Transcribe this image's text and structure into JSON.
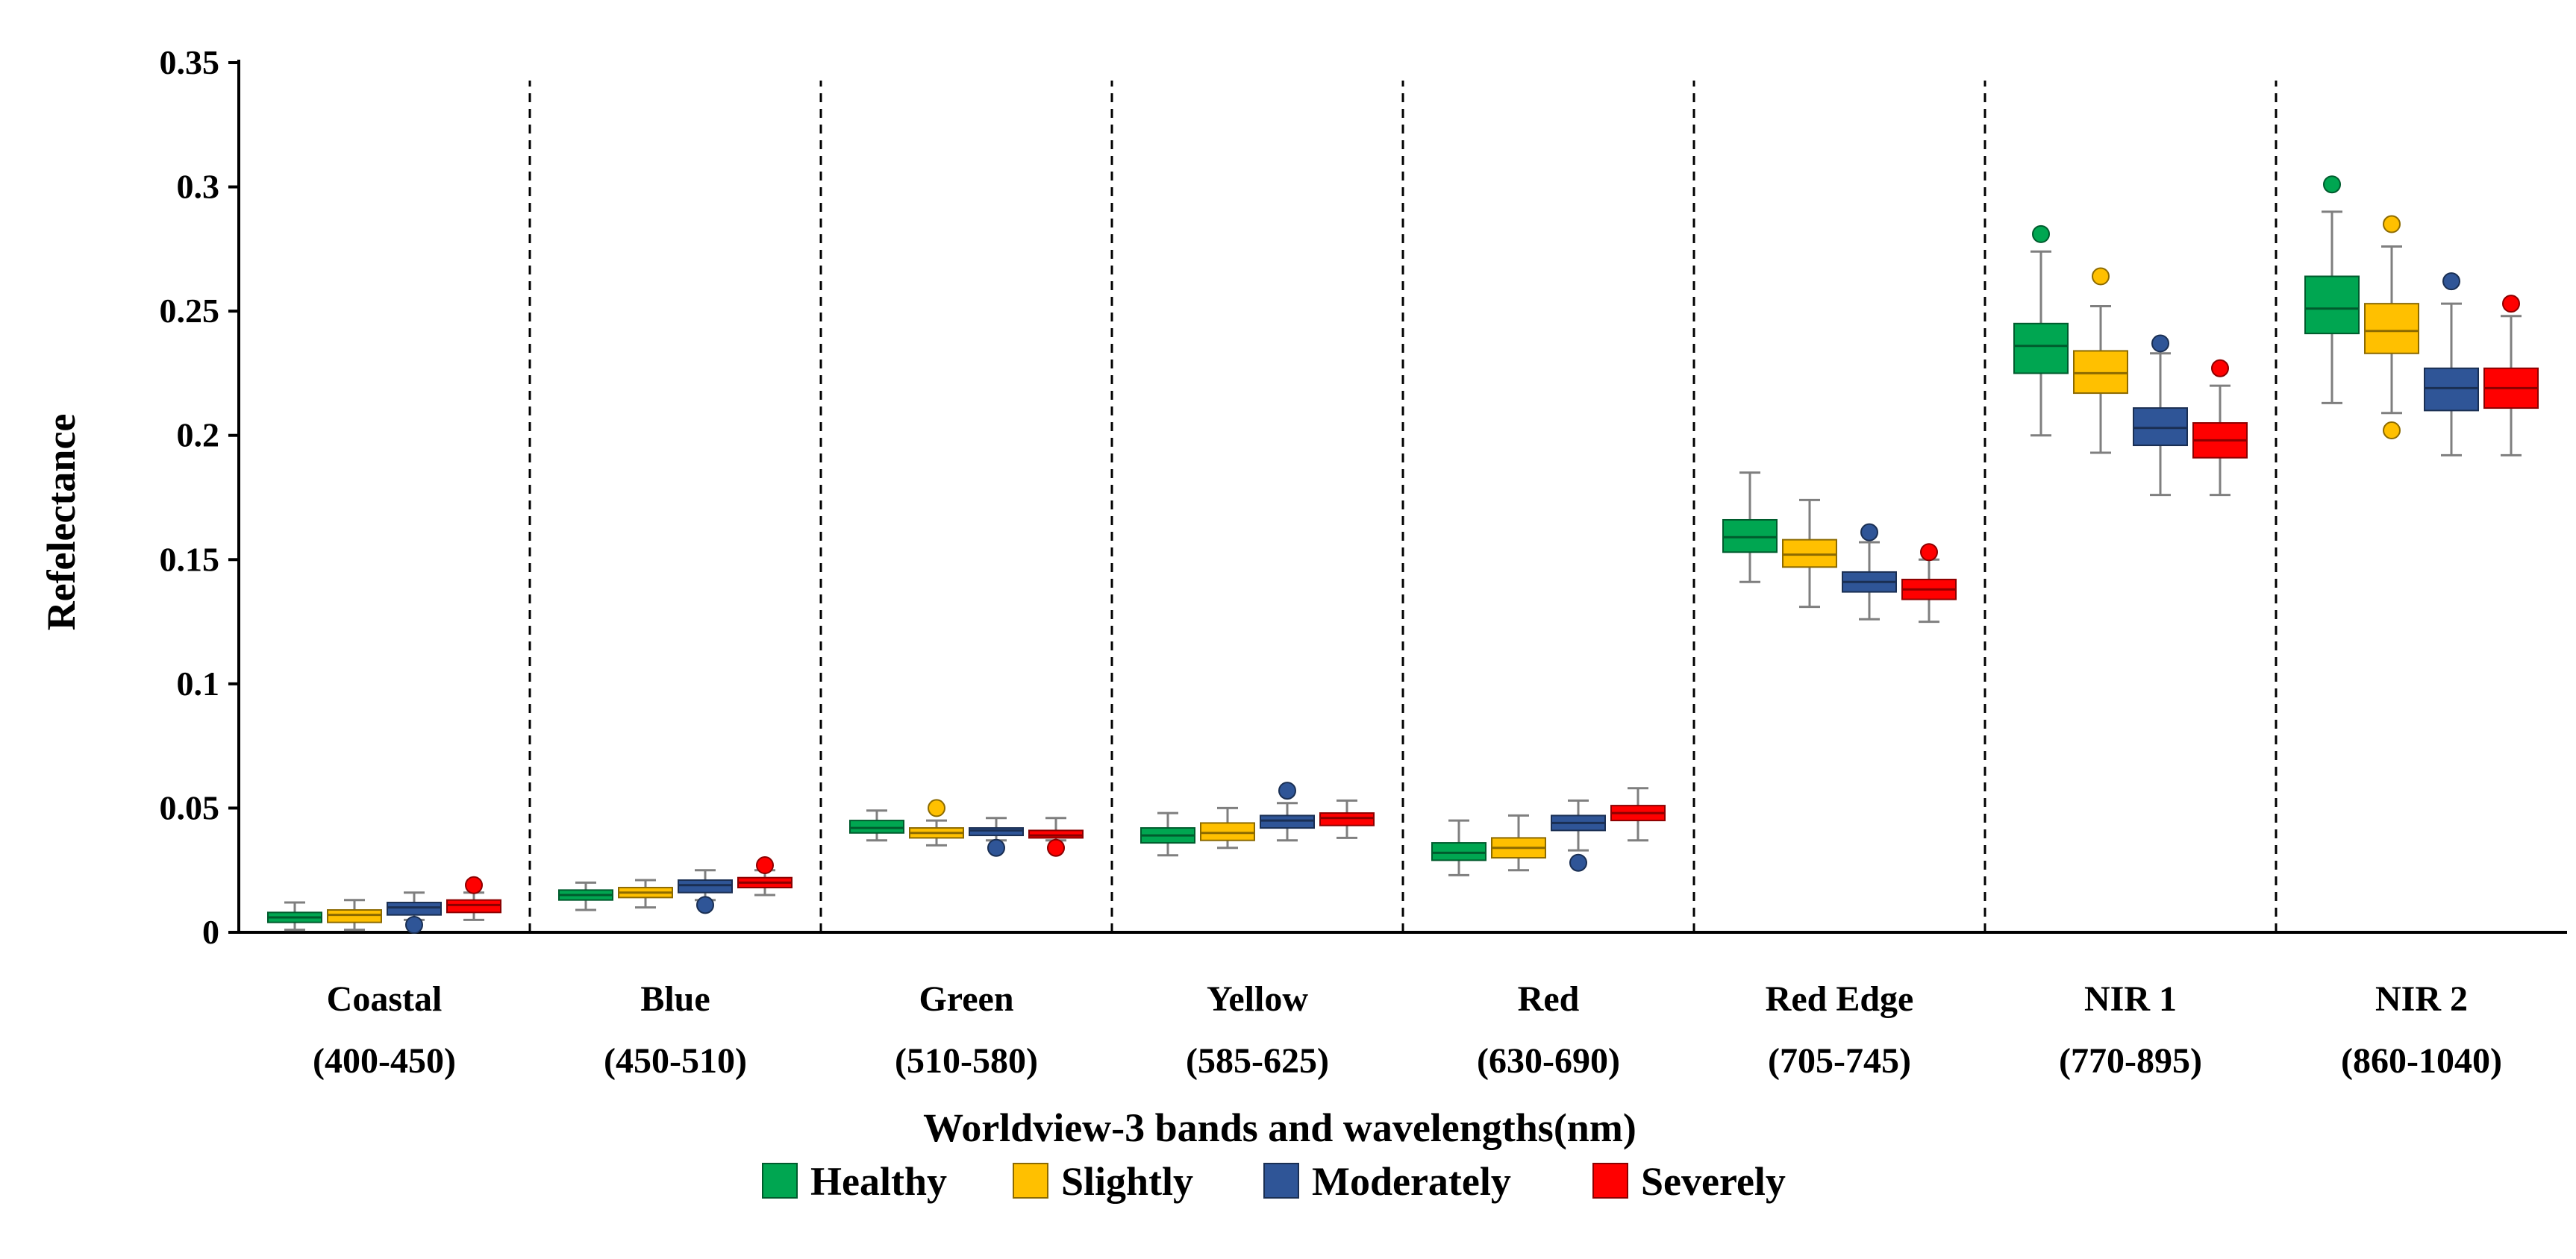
{
  "chart_data": {
    "type": "box",
    "title": "",
    "xlabel": "Worldview-3 bands and wavelengths(nm)",
    "ylabel": "Refelectance",
    "ylim": [
      0,
      0.35
    ],
    "yticks": [
      "0",
      "0.05",
      "0.1",
      "0.15",
      "0.2",
      "0.25",
      "0.3",
      "0.35"
    ],
    "yticks_values": [
      0,
      0.05,
      0.1,
      0.15,
      0.2,
      0.25,
      0.3,
      0.35
    ],
    "grid": false,
    "legend_position": "bottom",
    "categories": [
      {
        "name": "Coastal",
        "range": "(400-450)"
      },
      {
        "name": "Blue",
        "range": "(450-510)"
      },
      {
        "name": "Green",
        "range": "(510-580)"
      },
      {
        "name": "Yellow",
        "range": "(585-625)"
      },
      {
        "name": "Red",
        "range": "(630-690)"
      },
      {
        "name": "Red Edge",
        "range": "(705-745)"
      },
      {
        "name": "NIR 1",
        "range": "(770-895)"
      },
      {
        "name": "NIR 2",
        "range": "(860-1040)"
      }
    ],
    "series": [
      {
        "name": "Healthy",
        "color": "#00A651",
        "boxes": [
          {
            "whisker_low": 0.001,
            "q1": 0.004,
            "median": 0.006,
            "q3": 0.008,
            "whisker_high": 0.012,
            "outliers": []
          },
          {
            "whisker_low": 0.009,
            "q1": 0.013,
            "median": 0.015,
            "q3": 0.017,
            "whisker_high": 0.02,
            "outliers": []
          },
          {
            "whisker_low": 0.037,
            "q1": 0.04,
            "median": 0.042,
            "q3": 0.045,
            "whisker_high": 0.049,
            "outliers": []
          },
          {
            "whisker_low": 0.031,
            "q1": 0.036,
            "median": 0.039,
            "q3": 0.042,
            "whisker_high": 0.048,
            "outliers": []
          },
          {
            "whisker_low": 0.023,
            "q1": 0.029,
            "median": 0.032,
            "q3": 0.036,
            "whisker_high": 0.045,
            "outliers": []
          },
          {
            "whisker_low": 0.141,
            "q1": 0.153,
            "median": 0.159,
            "q3": 0.166,
            "whisker_high": 0.185,
            "outliers": []
          },
          {
            "whisker_low": 0.2,
            "q1": 0.225,
            "median": 0.236,
            "q3": 0.245,
            "whisker_high": 0.274,
            "outliers": [
              0.281
            ]
          },
          {
            "whisker_low": 0.213,
            "q1": 0.241,
            "median": 0.251,
            "q3": 0.264,
            "whisker_high": 0.29,
            "outliers": [
              0.301
            ]
          }
        ]
      },
      {
        "name": "Slightly",
        "color": "#FFC000",
        "boxes": [
          {
            "whisker_low": 0.001,
            "q1": 0.004,
            "median": 0.007,
            "q3": 0.009,
            "whisker_high": 0.013,
            "outliers": []
          },
          {
            "whisker_low": 0.01,
            "q1": 0.014,
            "median": 0.016,
            "q3": 0.018,
            "whisker_high": 0.021,
            "outliers": []
          },
          {
            "whisker_low": 0.035,
            "q1": 0.038,
            "median": 0.04,
            "q3": 0.042,
            "whisker_high": 0.045,
            "outliers": [
              0.05
            ]
          },
          {
            "whisker_low": 0.034,
            "q1": 0.037,
            "median": 0.04,
            "q3": 0.044,
            "whisker_high": 0.05,
            "outliers": []
          },
          {
            "whisker_low": 0.025,
            "q1": 0.03,
            "median": 0.034,
            "q3": 0.038,
            "whisker_high": 0.047,
            "outliers": []
          },
          {
            "whisker_low": 0.131,
            "q1": 0.147,
            "median": 0.152,
            "q3": 0.158,
            "whisker_high": 0.174,
            "outliers": []
          },
          {
            "whisker_low": 0.193,
            "q1": 0.217,
            "median": 0.225,
            "q3": 0.234,
            "whisker_high": 0.252,
            "outliers": [
              0.264
            ]
          },
          {
            "whisker_low": 0.209,
            "q1": 0.233,
            "median": 0.242,
            "q3": 0.253,
            "whisker_high": 0.276,
            "outliers": [
              0.285,
              0.202
            ]
          }
        ]
      },
      {
        "name": "Moderately",
        "color": "#2F5597",
        "boxes": [
          {
            "whisker_low": 0.005,
            "q1": 0.007,
            "median": 0.01,
            "q3": 0.012,
            "whisker_high": 0.016,
            "outliers": [
              0.003
            ]
          },
          {
            "whisker_low": 0.013,
            "q1": 0.016,
            "median": 0.019,
            "q3": 0.021,
            "whisker_high": 0.025,
            "outliers": [
              0.011
            ]
          },
          {
            "whisker_low": 0.037,
            "q1": 0.039,
            "median": 0.041,
            "q3": 0.042,
            "whisker_high": 0.046,
            "outliers": [
              0.034
            ]
          },
          {
            "whisker_low": 0.037,
            "q1": 0.042,
            "median": 0.045,
            "q3": 0.047,
            "whisker_high": 0.052,
            "outliers": [
              0.057
            ]
          },
          {
            "whisker_low": 0.033,
            "q1": 0.041,
            "median": 0.044,
            "q3": 0.047,
            "whisker_high": 0.053,
            "outliers": [
              0.028
            ]
          },
          {
            "whisker_low": 0.126,
            "q1": 0.137,
            "median": 0.141,
            "q3": 0.145,
            "whisker_high": 0.157,
            "outliers": [
              0.161
            ]
          },
          {
            "whisker_low": 0.176,
            "q1": 0.196,
            "median": 0.203,
            "q3": 0.211,
            "whisker_high": 0.233,
            "outliers": [
              0.237
            ]
          },
          {
            "whisker_low": 0.192,
            "q1": 0.21,
            "median": 0.219,
            "q3": 0.227,
            "whisker_high": 0.253,
            "outliers": [
              0.262
            ]
          }
        ]
      },
      {
        "name": "Severely",
        "color": "#FF0000",
        "boxes": [
          {
            "whisker_low": 0.005,
            "q1": 0.008,
            "median": 0.011,
            "q3": 0.013,
            "whisker_high": 0.016,
            "outliers": [
              0.019
            ]
          },
          {
            "whisker_low": 0.015,
            "q1": 0.018,
            "median": 0.02,
            "q3": 0.022,
            "whisker_high": 0.025,
            "outliers": [
              0.027
            ]
          },
          {
            "whisker_low": 0.037,
            "q1": 0.038,
            "median": 0.039,
            "q3": 0.041,
            "whisker_high": 0.046,
            "outliers": [
              0.034
            ]
          },
          {
            "whisker_low": 0.038,
            "q1": 0.043,
            "median": 0.046,
            "q3": 0.048,
            "whisker_high": 0.053,
            "outliers": []
          },
          {
            "whisker_low": 0.037,
            "q1": 0.045,
            "median": 0.048,
            "q3": 0.051,
            "whisker_high": 0.058,
            "outliers": []
          },
          {
            "whisker_low": 0.125,
            "q1": 0.134,
            "median": 0.138,
            "q3": 0.142,
            "whisker_high": 0.15,
            "outliers": [
              0.153
            ]
          },
          {
            "whisker_low": 0.176,
            "q1": 0.191,
            "median": 0.198,
            "q3": 0.205,
            "whisker_high": 0.22,
            "outliers": [
              0.227
            ]
          },
          {
            "whisker_low": 0.192,
            "q1": 0.211,
            "median": 0.219,
            "q3": 0.227,
            "whisker_high": 0.248,
            "outliers": [
              0.253
            ]
          }
        ]
      }
    ]
  }
}
